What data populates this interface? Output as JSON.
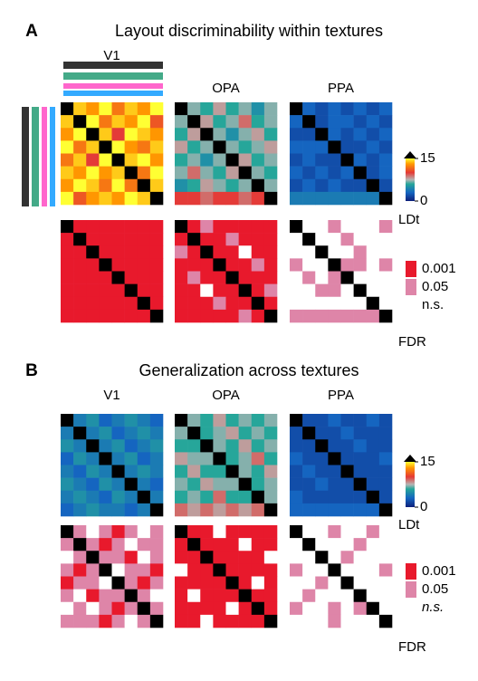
{
  "panels": [
    {
      "letter": "A",
      "title": "Layout discriminability within textures",
      "regions": [
        {
          "name": "V1",
          "ldt": [
            [
              null,
              14,
              13,
              15,
              12,
              14,
              13,
              15
            ],
            [
              14,
              null,
              15,
              12,
              14,
              13,
              15,
              11
            ],
            [
              13,
              15,
              null,
              14,
              10,
              15,
              14,
              13
            ],
            [
              15,
              12,
              14,
              null,
              15,
              13,
              12,
              14
            ],
            [
              12,
              14,
              10,
              15,
              null,
              14,
              15,
              13
            ],
            [
              14,
              13,
              15,
              13,
              14,
              null,
              12,
              15
            ],
            [
              13,
              15,
              14,
              12,
              15,
              12,
              null,
              14
            ],
            [
              15,
              11,
              13,
              14,
              13,
              15,
              14,
              null
            ]
          ],
          "fdr": [
            [
              null,
              0,
              0,
              0,
              0,
              0,
              0,
              0
            ],
            [
              0,
              null,
              0,
              0,
              0,
              0,
              0,
              0
            ],
            [
              0,
              0,
              null,
              0,
              0,
              0,
              0,
              0
            ],
            [
              0,
              0,
              0,
              null,
              0,
              0,
              0,
              0
            ],
            [
              0,
              0,
              0,
              0,
              null,
              0,
              0,
              0
            ],
            [
              0,
              0,
              0,
              0,
              0,
              null,
              0,
              0
            ],
            [
              0,
              0,
              0,
              0,
              0,
              0,
              null,
              0
            ],
            [
              0,
              0,
              0,
              0,
              0,
              0,
              0,
              null
            ]
          ]
        },
        {
          "name": "OPA",
          "ldt": [
            [
              null,
              7,
              6,
              8,
              6,
              7,
              5,
              7
            ],
            [
              7,
              null,
              8,
              6,
              7,
              9,
              6,
              7
            ],
            [
              6,
              8,
              null,
              7,
              5,
              7,
              8,
              6
            ],
            [
              8,
              6,
              7,
              null,
              7,
              6,
              7,
              8
            ],
            [
              6,
              7,
              5,
              7,
              null,
              8,
              6,
              7
            ],
            [
              7,
              9,
              7,
              6,
              8,
              null,
              7,
              6
            ],
            [
              5,
              6,
              8,
              7,
              6,
              7,
              null,
              7
            ],
            [
              10,
              10,
              9,
              10,
              10,
              9,
              10,
              null
            ]
          ],
          "fdr": [
            [
              null,
              0,
              1,
              0,
              0,
              0,
              0,
              0
            ],
            [
              0,
              null,
              0,
              0,
              1,
              0,
              0,
              0
            ],
            [
              1,
              0,
              null,
              0,
              0,
              2,
              0,
              0
            ],
            [
              0,
              0,
              0,
              null,
              0,
              0,
              1,
              0
            ],
            [
              0,
              1,
              0,
              0,
              null,
              0,
              0,
              0
            ],
            [
              0,
              0,
              2,
              0,
              0,
              null,
              0,
              1
            ],
            [
              0,
              0,
              0,
              1,
              0,
              0,
              null,
              0
            ],
            [
              0,
              0,
              0,
              0,
              0,
              1,
              0,
              null
            ]
          ]
        },
        {
          "name": "PPA",
          "ldt": [
            [
              null,
              3,
              2,
              3,
              2,
              3,
              2,
              3
            ],
            [
              3,
              null,
              2,
              3,
              3,
              2,
              3,
              2
            ],
            [
              2,
              2,
              null,
              3,
              2,
              3,
              2,
              3
            ],
            [
              3,
              3,
              3,
              null,
              2,
              2,
              3,
              2
            ],
            [
              2,
              3,
              2,
              2,
              null,
              3,
              2,
              3
            ],
            [
              3,
              2,
              3,
              2,
              3,
              null,
              2,
              3
            ],
            [
              2,
              3,
              2,
              3,
              2,
              2,
              null,
              2
            ],
            [
              4,
              4,
              4,
              4,
              4,
              4,
              4,
              null
            ]
          ],
          "fdr": [
            [
              null,
              2,
              2,
              1,
              2,
              2,
              2,
              1
            ],
            [
              2,
              null,
              2,
              2,
              1,
              2,
              2,
              2
            ],
            [
              2,
              2,
              null,
              2,
              2,
              1,
              2,
              2
            ],
            [
              1,
              2,
              2,
              null,
              1,
              1,
              2,
              1
            ],
            [
              2,
              1,
              2,
              1,
              null,
              2,
              2,
              2
            ],
            [
              2,
              2,
              1,
              1,
              2,
              null,
              2,
              2
            ],
            [
              2,
              2,
              2,
              2,
              2,
              2,
              null,
              2
            ],
            [
              1,
              1,
              1,
              1,
              1,
              1,
              1,
              null
            ]
          ]
        }
      ],
      "colorbar": {
        "lim": [
          0,
          15
        ],
        "ticks": [
          0,
          15
        ],
        "label": "LDt"
      },
      "fdr_legend": {
        "levels": [
          {
            "label": "0.001",
            "color": "#e8192c"
          },
          {
            "label": "0.05",
            "color": "#de85a8"
          },
          {
            "label": "n.s.",
            "color": "#ffffff",
            "italic": false
          }
        ],
        "label": "FDR"
      }
    },
    {
      "letter": "B",
      "title": "Generalization across textures",
      "regions": [
        {
          "name": "V1",
          "ldt": [
            [
              null,
              4,
              5,
              3,
              4,
              5,
              4,
              3
            ],
            [
              4,
              null,
              4,
              5,
              3,
              4,
              5,
              4
            ],
            [
              5,
              4,
              null,
              4,
              5,
              3,
              4,
              5
            ],
            [
              3,
              5,
              4,
              null,
              4,
              5,
              3,
              4
            ],
            [
              4,
              3,
              5,
              4,
              null,
              4,
              5,
              4
            ],
            [
              5,
              4,
              3,
              5,
              4,
              null,
              4,
              3
            ],
            [
              4,
              5,
              4,
              3,
              5,
              4,
              null,
              4
            ],
            [
              3,
              4,
              5,
              4,
              4,
              3,
              4,
              null
            ]
          ],
          "fdr": [
            [
              null,
              1,
              2,
              1,
              0,
              1,
              2,
              1
            ],
            [
              1,
              null,
              1,
              0,
              1,
              2,
              1,
              1
            ],
            [
              2,
              1,
              null,
              1,
              1,
              0,
              2,
              1
            ],
            [
              1,
              0,
              1,
              null,
              2,
              1,
              1,
              0
            ],
            [
              0,
              1,
              1,
              2,
              null,
              1,
              0,
              1
            ],
            [
              1,
              2,
              0,
              1,
              1,
              null,
              1,
              2
            ],
            [
              2,
              1,
              2,
              1,
              0,
              1,
              null,
              1
            ],
            [
              1,
              1,
              1,
              0,
              1,
              2,
              1,
              null
            ]
          ]
        },
        {
          "name": "OPA",
          "ldt": [
            [
              null,
              7,
              6,
              8,
              6,
              7,
              6,
              7
            ],
            [
              7,
              null,
              6,
              7,
              8,
              6,
              7,
              6
            ],
            [
              6,
              6,
              null,
              7,
              6,
              8,
              6,
              7
            ],
            [
              8,
              7,
              7,
              null,
              6,
              7,
              9,
              6
            ],
            [
              6,
              8,
              6,
              6,
              null,
              7,
              6,
              8
            ],
            [
              7,
              6,
              8,
              7,
              7,
              null,
              6,
              7
            ],
            [
              6,
              7,
              6,
              9,
              6,
              6,
              null,
              7
            ],
            [
              9,
              8,
              9,
              8,
              9,
              8,
              9,
              null
            ]
          ],
          "fdr": [
            [
              null,
              0,
              0,
              2,
              0,
              0,
              0,
              0
            ],
            [
              0,
              null,
              0,
              0,
              0,
              2,
              0,
              0
            ],
            [
              0,
              0,
              null,
              0,
              0,
              0,
              0,
              2
            ],
            [
              2,
              0,
              0,
              null,
              0,
              0,
              0,
              0
            ],
            [
              0,
              0,
              0,
              0,
              null,
              0,
              2,
              0
            ],
            [
              0,
              2,
              0,
              0,
              0,
              null,
              0,
              0
            ],
            [
              0,
              0,
              0,
              0,
              2,
              0,
              null,
              0
            ],
            [
              0,
              0,
              2,
              0,
              0,
              0,
              0,
              null
            ]
          ]
        },
        {
          "name": "PPA",
          "ldt": [
            [
              null,
              2,
              2,
              3,
              2,
              2,
              3,
              2
            ],
            [
              2,
              null,
              2,
              2,
              3,
              2,
              2,
              2
            ],
            [
              2,
              2,
              null,
              2,
              2,
              3,
              2,
              2
            ],
            [
              3,
              2,
              2,
              null,
              2,
              2,
              2,
              3
            ],
            [
              2,
              3,
              2,
              2,
              null,
              2,
              2,
              2
            ],
            [
              2,
              2,
              3,
              2,
              2,
              null,
              2,
              2
            ],
            [
              3,
              2,
              2,
              2,
              2,
              2,
              null,
              2
            ],
            [
              3,
              3,
              3,
              3,
              3,
              3,
              3,
              null
            ]
          ],
          "fdr": [
            [
              null,
              2,
              2,
              1,
              2,
              2,
              1,
              2
            ],
            [
              2,
              null,
              2,
              2,
              2,
              1,
              2,
              2
            ],
            [
              2,
              2,
              null,
              2,
              1,
              2,
              2,
              2
            ],
            [
              1,
              2,
              2,
              null,
              2,
              2,
              2,
              1
            ],
            [
              2,
              2,
              1,
              2,
              null,
              2,
              2,
              2
            ],
            [
              2,
              1,
              2,
              2,
              2,
              null,
              2,
              2
            ],
            [
              1,
              2,
              2,
              1,
              2,
              1,
              null,
              2
            ],
            [
              2,
              2,
              2,
              1,
              2,
              2,
              2,
              null
            ]
          ]
        }
      ],
      "colorbar": {
        "lim": [
          0,
          15
        ],
        "ticks": [
          0,
          15
        ],
        "label": "LDt"
      },
      "fdr_legend": {
        "levels": [
          {
            "label": "0.001",
            "color": "#e8192c"
          },
          {
            "label": "0.05",
            "color": "#de85a8"
          },
          {
            "label": "n.s.",
            "color": "#ffffff",
            "italic": true
          }
        ],
        "label": "FDR"
      }
    }
  ]
}
